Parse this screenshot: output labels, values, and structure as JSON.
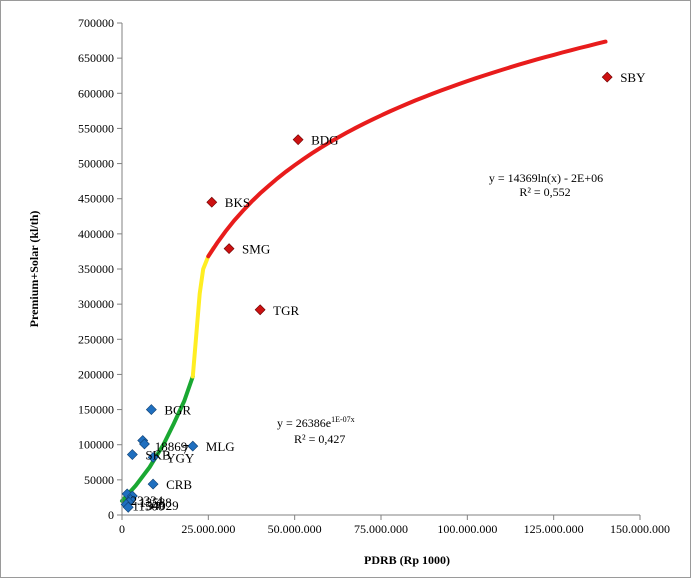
{
  "chart_data": {
    "type": "scatter",
    "title": "",
    "xlabel": "PDRB (Rp 1000)",
    "ylabel": "Premium+Solar (kl/th)",
    "xlim": [
      0,
      150000000
    ],
    "ylim": [
      0,
      700000
    ],
    "grid": false,
    "legend": "none",
    "x_ticks": [
      0,
      25000000,
      50000000,
      75000000,
      100000000,
      125000000,
      150000000
    ],
    "x_tick_labels": [
      "0",
      "25.000.000",
      "50.000.000",
      "75.000.000",
      "100.000.000",
      "125.000.000",
      "150.000.000"
    ],
    "y_ticks": [
      0,
      50000,
      100000,
      150000,
      200000,
      250000,
      300000,
      350000,
      400000,
      450000,
      500000,
      550000,
      600000,
      650000,
      700000
    ],
    "y_tick_labels": [
      "0",
      "50000",
      "100000",
      "150000",
      "200000",
      "250000",
      "300000",
      "350000",
      "400000",
      "450000",
      "500000",
      "550000",
      "600000",
      "650000",
      "700000"
    ],
    "series": [
      {
        "marker": "diamond",
        "color": "#cc1111",
        "points": [
          {
            "x": 140500000,
            "y": 623000,
            "label": "SBY"
          },
          {
            "x": 51000000,
            "y": 534000,
            "label": "BDG"
          },
          {
            "x": 26000000,
            "y": 445000,
            "label": "BKS"
          },
          {
            "x": 31000000,
            "y": 379000,
            "label": "SMG"
          },
          {
            "x": 40000000,
            "y": 292000,
            "label": "TGR"
          }
        ]
      },
      {
        "marker": "diamond",
        "color": "#1f6fbf",
        "points": [
          {
            "x": 8500000,
            "y": 150000,
            "label": "BGR"
          },
          {
            "x": 6000000,
            "y": 106000,
            "label": ""
          },
          {
            "x": 6500000,
            "y": 101000,
            "label": ""
          },
          {
            "x": 20500000,
            "y": 98000,
            "label": "MLG"
          },
          {
            "x": 3000000,
            "y": 86000,
            "label": "SKB"
          },
          {
            "x": 9000000,
            "y": 82000,
            "label": "YGY"
          },
          {
            "x": 9000000,
            "y": 44000,
            "label": "CRB"
          },
          {
            "x": 1500000,
            "y": 30000,
            "label": ""
          },
          {
            "x": 3000000,
            "y": 27000,
            "label": ""
          },
          {
            "x": 2500000,
            "y": 22000,
            "label": ""
          },
          {
            "x": 2000000,
            "y": 18000,
            "label": ""
          },
          {
            "x": 1200000,
            "y": 15000,
            "label": ""
          },
          {
            "x": 1800000,
            "y": 11000,
            "label": ""
          }
        ]
      }
    ],
    "trendlines": [
      {
        "type": "log",
        "color": "#e81c1c",
        "equation": "y = 14369ln(x) - 2E+06",
        "r2": "R² = 0,552"
      },
      {
        "type": "exponential",
        "equation": "y = 26386e",
        "exponent": "1E-07x",
        "r2": "R² = 0,427"
      }
    ],
    "annotations": [
      "18869",
      "7",
      "23334",
      "13588",
      "11500",
      "34029"
    ]
  }
}
